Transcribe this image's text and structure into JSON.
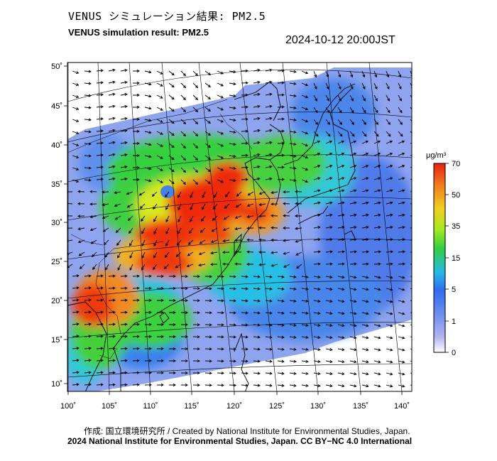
{
  "header": {
    "title_jp": "VENUS シミュレーション結果: PM2.5",
    "title_en": "VENUS simulation result: PM2.5",
    "datetime": "2024-10-12 20:00JST"
  },
  "map": {
    "lon_range": [
      100,
      141
    ],
    "lat_range": [
      9,
      50
    ],
    "lon_ticks": [
      "100˚",
      "105˚",
      "110˚",
      "115˚",
      "120˚",
      "125˚",
      "130˚",
      "135˚",
      "140˚"
    ],
    "lat_ticks": [
      "50˚",
      "45˚",
      "40˚",
      "35˚",
      "30˚",
      "25˚",
      "20˚",
      "15˚",
      "10˚"
    ]
  },
  "colorbar": {
    "unit": "μg/m³",
    "labels": [
      "70",
      "50",
      "35",
      "15",
      "5",
      "1",
      "0"
    ],
    "colors": [
      "#ffffff",
      "#8c8cf0",
      "#2f6cf0",
      "#26c8e6",
      "#30d050",
      "#d8f020",
      "#f0a020",
      "#f03010"
    ]
  },
  "footer": {
    "credit_jp": "作成: 国立環境研究所 / Created by National Institute for Environmental Studies, Japan.",
    "credit_en": "2024 National Institute for Environmental Studies, Japan. CC BY−NC 4.0 International"
  }
}
